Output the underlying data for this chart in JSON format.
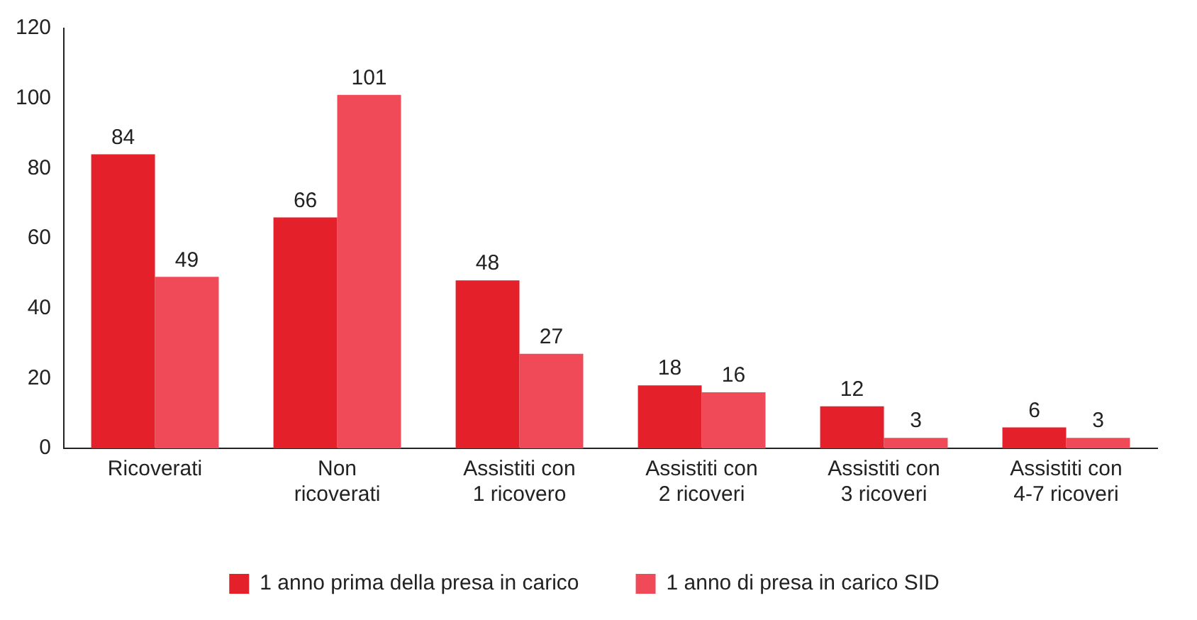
{
  "chart_data": {
    "type": "bar",
    "categories": [
      "Ricoverati",
      "Non ricoverati",
      "Assistiti con 1 ricovero",
      "Assistiti con 2 ricoveri",
      "Assistiti con 3 ricoveri",
      "Assistiti con 4-7 ricoveri"
    ],
    "series": [
      {
        "name": "1 anno prima della presa in carico",
        "color": "#e4202a",
        "values": [
          84,
          66,
          48,
          18,
          12,
          6
        ]
      },
      {
        "name": "1 anno di presa in carico SID",
        "color": "#f04a58",
        "values": [
          49,
          101,
          27,
          16,
          3,
          3
        ]
      }
    ],
    "ylim": [
      0,
      120
    ],
    "yticks": [
      0,
      20,
      40,
      60,
      80,
      100,
      120
    ],
    "data_labels": true,
    "legend": "bottom",
    "grid": false
  }
}
